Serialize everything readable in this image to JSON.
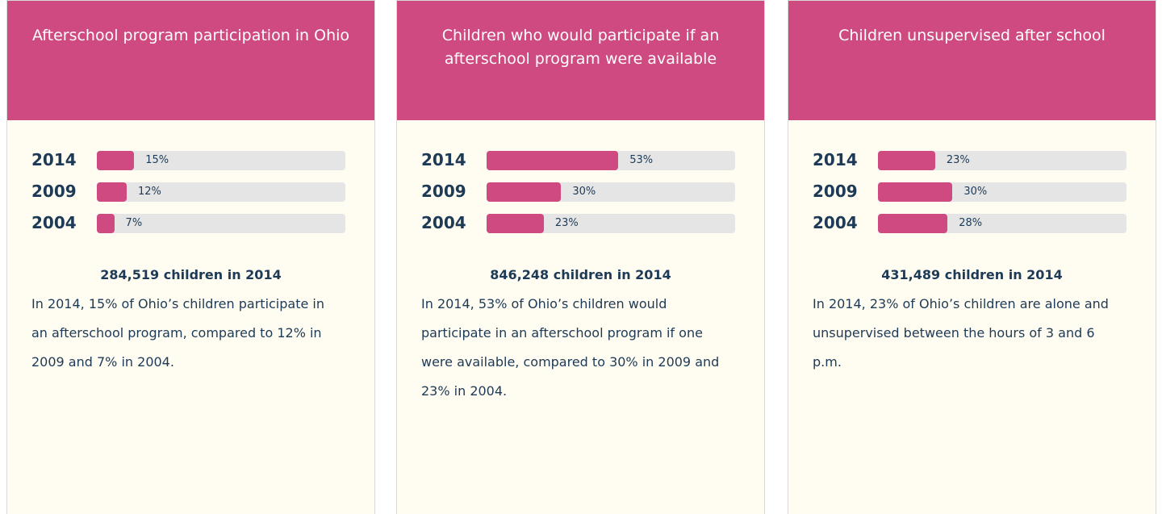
{
  "chart_data": [
    {
      "type": "bar",
      "title": "Afterschool program participation in Ohio",
      "categories": [
        "2014",
        "2009",
        "2004"
      ],
      "values": [
        15,
        12,
        7
      ],
      "value_labels": [
        "15%",
        "12%",
        "7%"
      ],
      "xlim": [
        0,
        100
      ],
      "color": "#cf4a80",
      "summary": "284,519 children in 2014",
      "description": "In 2014, 15% of Ohio’s children participate in an afterschool program, compared to 12% in 2009 and 7% in 2004."
    },
    {
      "type": "bar",
      "title": "Children who would participate if an afterschool program were available",
      "categories": [
        "2014",
        "2009",
        "2004"
      ],
      "values": [
        53,
        30,
        23
      ],
      "value_labels": [
        "53%",
        "30%",
        "23%"
      ],
      "xlim": [
        0,
        100
      ],
      "color": "#cf4a80",
      "summary": "846,248 children in 2014",
      "description": "In 2014, 53% of Ohio’s children would participate in an afterschool program if one were available, compared to 30% in 2009 and 23% in 2004."
    },
    {
      "type": "bar",
      "title": "Children unsupervised after school",
      "categories": [
        "2014",
        "2009",
        "2004"
      ],
      "values": [
        23,
        30,
        28
      ],
      "value_labels": [
        "23%",
        "30%",
        "28%"
      ],
      "xlim": [
        0,
        100
      ],
      "color": "#cf4a80",
      "summary": "431,489 children in 2014",
      "description": "In 2014, 23% of Ohio’s children are alone and unsupervised between the hours of 3 and 6 p.m."
    }
  ]
}
